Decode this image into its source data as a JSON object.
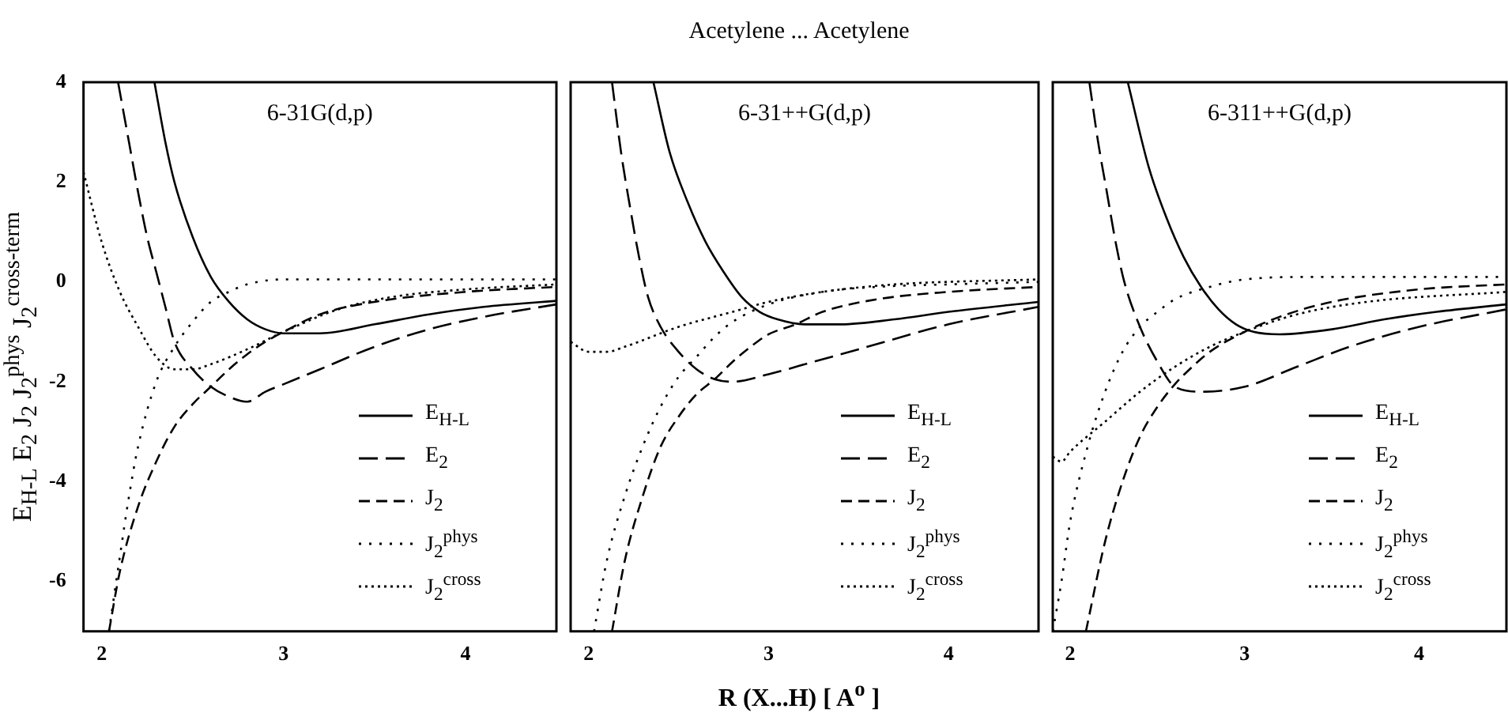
{
  "chart_data": [
    {
      "type": "line",
      "ylabel": "E$_{H-L}$ E$_{2}$ J$_{2}$ J$_{2}$$^{phys}$ J$_{2}$$^{cross-term}$",
      "annotations": [
        "6-31G(d,p)"
      ],
      "xlim": [
        1.9,
        4.5
      ],
      "ylim": [
        -7,
        4
      ],
      "xticks": [
        2,
        3,
        4
      ],
      "yticks": [
        -6,
        -4,
        -2,
        0,
        2,
        4
      ],
      "legend": "bottom right",
      "series": [
        {
          "name": "E$_{H-L}$",
          "color": "#000000",
          "line_style": "solid",
          "x": [
            2.29,
            2.35,
            2.4,
            2.5,
            2.6,
            2.7,
            2.8,
            2.9,
            3.0,
            3.2,
            3.5,
            3.8,
            4.1,
            4.5
          ],
          "values": [
            4,
            2.8,
            2.0,
            0.9,
            0.1,
            -0.4,
            -0.75,
            -0.95,
            -1.03,
            -1.03,
            -0.85,
            -0.65,
            -0.5,
            -0.38
          ]
        },
        {
          "name": "E$_{2}$",
          "color": "#000000",
          "line_style": "dashed",
          "x": [
            2.09,
            2.15,
            2.2,
            2.25,
            2.3,
            2.35,
            2.4,
            2.5,
            2.6,
            2.7,
            2.8,
            2.9,
            3.0,
            3.2,
            3.5,
            3.8,
            4.1,
            4.5
          ],
          "values": [
            4,
            2.8,
            1.8,
            0.9,
            0.2,
            -0.5,
            -1.2,
            -1.75,
            -2.1,
            -2.3,
            -2.4,
            -2.2,
            -2.05,
            -1.75,
            -1.3,
            -0.95,
            -0.7,
            -0.45
          ]
        },
        {
          "name": "J$_{2}$",
          "color": "#000000",
          "line_style": "dashed",
          "x": [
            2.04,
            2.1,
            2.2,
            2.3,
            2.4,
            2.5,
            2.6,
            2.7,
            2.8,
            2.9,
            3.0,
            3.2,
            3.5,
            4.0,
            4.5
          ],
          "values": [
            -7,
            -5.8,
            -4.5,
            -3.6,
            -2.9,
            -2.45,
            -2.1,
            -1.75,
            -1.45,
            -1.2,
            -1.0,
            -0.65,
            -0.4,
            -0.2,
            -0.1
          ]
        },
        {
          "name": "J$_{2}$$^{phys}$",
          "color": "#000000",
          "line_style": "dotted",
          "x": [
            2.04,
            2.1,
            2.15,
            2.2,
            2.3,
            2.4,
            2.5,
            2.6,
            2.7,
            2.8,
            3.0,
            3.5,
            4.5
          ],
          "values": [
            -7,
            -5.5,
            -4.3,
            -3.3,
            -2.0,
            -1.3,
            -0.8,
            -0.4,
            -0.2,
            -0.05,
            0.05,
            0.05,
            0.05
          ]
        },
        {
          "name": "J$_{2}$$^{cross}$",
          "color": "#000000",
          "line_style": "dotted",
          "x": [
            1.9,
            2.0,
            2.1,
            2.2,
            2.3,
            2.4,
            2.5,
            2.6,
            2.8,
            3.0,
            3.3,
            3.6,
            4.0,
            4.5
          ],
          "values": [
            2.2,
            0.8,
            -0.2,
            -0.9,
            -1.5,
            -1.75,
            -1.75,
            -1.65,
            -1.35,
            -1.0,
            -0.55,
            -0.3,
            -0.15,
            -0.05
          ]
        }
      ]
    },
    {
      "type": "line",
      "title": "Acetylene ... Acetylene",
      "xlabel": "R (X...H) [ A$^{o}$ ]",
      "annotations": [
        "6-31++G(d,p)"
      ],
      "xlim": [
        1.9,
        4.5
      ],
      "ylim": [
        -7,
        4
      ],
      "xticks": [
        2,
        3,
        4
      ],
      "yticks": [
        -6,
        -4,
        -2,
        0,
        2,
        4
      ],
      "tick_labels": "x",
      "legend": "bottom right",
      "series": [
        {
          "name": "E$_{H-L}$",
          "color": "#000000",
          "line_style": "solid",
          "x": [
            2.36,
            2.45,
            2.55,
            2.65,
            2.75,
            2.85,
            2.95,
            3.05,
            3.2,
            3.4,
            3.7,
            4.0,
            4.5
          ],
          "values": [
            4,
            2.6,
            1.6,
            0.8,
            0.2,
            -0.3,
            -0.6,
            -0.75,
            -0.85,
            -0.85,
            -0.75,
            -0.6,
            -0.4
          ]
        },
        {
          "name": "E$_{2}$",
          "color": "#000000",
          "line_style": "dashed",
          "x": [
            2.13,
            2.18,
            2.23,
            2.28,
            2.33,
            2.4,
            2.5,
            2.6,
            2.7,
            2.8,
            3.0,
            3.25,
            3.5,
            4.0,
            4.5
          ],
          "values": [
            4,
            2.6,
            1.5,
            0.5,
            -0.3,
            -0.9,
            -1.4,
            -1.75,
            -1.95,
            -2.0,
            -1.85,
            -1.6,
            -1.35,
            -0.85,
            -0.5
          ]
        },
        {
          "name": "J$_{2}$",
          "color": "#000000",
          "line_style": "dashed",
          "x": [
            2.13,
            2.2,
            2.3,
            2.4,
            2.5,
            2.6,
            2.7,
            2.8,
            2.9,
            3.0,
            3.15,
            3.3,
            3.6,
            4.0,
            4.5
          ],
          "values": [
            -7,
            -5.6,
            -4.3,
            -3.3,
            -2.7,
            -2.25,
            -1.95,
            -1.6,
            -1.3,
            -1.05,
            -0.85,
            -0.6,
            -0.35,
            -0.2,
            -0.1
          ]
        },
        {
          "name": "J$_{2}$$^{phys}$",
          "color": "#000000",
          "line_style": "dotted",
          "x": [
            2.03,
            2.1,
            2.2,
            2.3,
            2.4,
            2.5,
            2.6,
            2.7,
            2.8,
            3.0,
            3.3,
            3.6,
            4.0,
            4.5
          ],
          "values": [
            -7,
            -5.6,
            -4.3,
            -3.3,
            -2.5,
            -1.9,
            -1.5,
            -1.1,
            -0.8,
            -0.45,
            -0.2,
            -0.1,
            -0.05,
            0
          ]
        },
        {
          "name": "J$_{2}$$^{cross}$",
          "color": "#000000",
          "line_style": "dotted",
          "x": [
            1.9,
            2.0,
            2.1,
            2.2,
            2.5,
            2.8,
            3.0,
            3.3,
            3.7,
            4.5
          ],
          "values": [
            -1.2,
            -1.4,
            -1.4,
            -1.3,
            -0.9,
            -0.6,
            -0.4,
            -0.2,
            -0.05,
            0.05
          ]
        }
      ]
    },
    {
      "type": "line",
      "annotations": [
        "6-311++G(d,p)"
      ],
      "xlim": [
        1.9,
        4.5
      ],
      "ylim": [
        -7,
        4
      ],
      "xticks": [
        2,
        3,
        4
      ],
      "yticks": [
        -6,
        -4,
        -2,
        0,
        2,
        4
      ],
      "tick_labels": "x",
      "legend": "bottom right",
      "series": [
        {
          "name": "E$_{H-L}$",
          "color": "#000000",
          "line_style": "solid",
          "x": [
            2.33,
            2.45,
            2.55,
            2.65,
            2.75,
            2.85,
            2.95,
            3.05,
            3.2,
            3.5,
            3.8,
            4.1,
            4.5
          ],
          "values": [
            4,
            2.3,
            1.3,
            0.5,
            -0.1,
            -0.55,
            -0.85,
            -1.0,
            -1.05,
            -0.95,
            -0.75,
            -0.6,
            -0.45
          ]
        },
        {
          "name": "E$_{2}$",
          "color": "#000000",
          "line_style": "dashed",
          "x": [
            2.11,
            2.16,
            2.21,
            2.26,
            2.31,
            2.4,
            2.5,
            2.6,
            2.75,
            3.0,
            3.3,
            3.6,
            4.0,
            4.5
          ],
          "values": [
            4,
            2.8,
            1.8,
            0.8,
            0,
            -0.9,
            -1.6,
            -2.1,
            -2.2,
            -2.1,
            -1.7,
            -1.3,
            -0.9,
            -0.55
          ]
        },
        {
          "name": "J$_{2}$",
          "color": "#000000",
          "line_style": "dashed",
          "x": [
            2.09,
            2.2,
            2.3,
            2.4,
            2.5,
            2.6,
            2.7,
            2.8,
            3.0,
            3.2,
            3.5,
            4.0,
            4.5
          ],
          "values": [
            -7,
            -5.2,
            -4.0,
            -3.1,
            -2.5,
            -2.05,
            -1.7,
            -1.4,
            -1.0,
            -0.7,
            -0.4,
            -0.15,
            -0.05
          ]
        },
        {
          "name": "J$_{2}$$^{phys}$",
          "color": "#000000",
          "line_style": "dotted",
          "x": [
            1.9,
            1.95,
            2.0,
            2.1,
            2.2,
            2.3,
            2.4,
            2.5,
            2.6,
            2.8,
            3.0,
            3.4,
            4.5
          ],
          "values": [
            -7,
            -6,
            -4.8,
            -3.3,
            -2.2,
            -1.4,
            -0.9,
            -0.6,
            -0.35,
            -0.1,
            0.05,
            0.1,
            0.1
          ]
        },
        {
          "name": "J$_{2}$$^{cross}$",
          "color": "#000000",
          "line_style": "dotted",
          "x": [
            1.9,
            1.95,
            2.0,
            2.2,
            2.4,
            2.6,
            2.8,
            3.0,
            3.3,
            3.7,
            4.5
          ],
          "values": [
            -3.5,
            -3.6,
            -3.4,
            -2.8,
            -2.2,
            -1.7,
            -1.3,
            -1.0,
            -0.65,
            -0.4,
            -0.2
          ]
        }
      ]
    }
  ]
}
